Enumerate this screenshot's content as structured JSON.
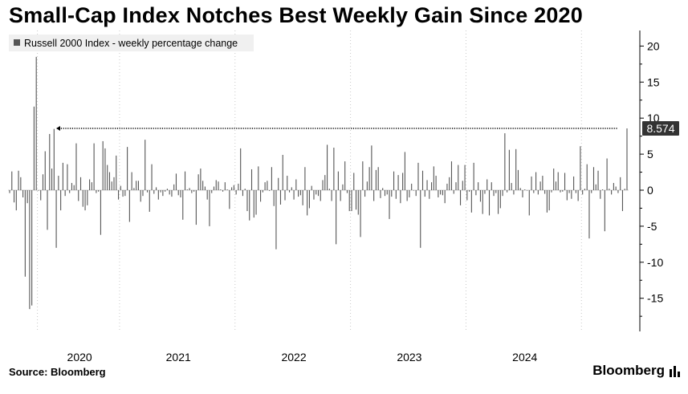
{
  "header": {
    "title": "Small-Cap Index Notches Best Weekly Gain Since 2020"
  },
  "footer": {
    "source": "Source: Bloomberg",
    "brand": "Bloomberg"
  },
  "chart_data": {
    "type": "bar",
    "title": "Small-Cap Index Notches Best Weekly Gain Since 2020",
    "legend": "Russell 2000 Index - weekly percentage change",
    "legend_position": "top-left",
    "x_tick_labels": [
      "2020",
      "2021",
      "2022",
      "2023",
      "2024"
    ],
    "y_ticks": [
      20,
      15,
      10,
      5,
      0,
      -5,
      -10,
      -15
    ],
    "ylim": [
      -19.5,
      22
    ],
    "y_axis_side": "right",
    "grid": "vertical dotted at year boundaries",
    "annotation": {
      "label": "8.574",
      "value": 8.574,
      "reference_line": "dotted horizontal from early-2020 peak to latest week"
    },
    "series": [
      {
        "name": "Russell 2000 Index - weekly percentage change",
        "color": "#555555",
        "values": [
          -0.4,
          2.6,
          -1.7,
          -2.8,
          2.7,
          1.8,
          -1.0,
          -12.0,
          -1.8,
          -16.5,
          -16.0,
          11.6,
          18.5,
          0.0,
          -1.4,
          2.2,
          5.4,
          -5.5,
          7.8,
          3.0,
          8.5,
          -8.0,
          2.0,
          -2.8,
          3.8,
          -0.8,
          3.6,
          -0.4,
          1.0,
          0.7,
          6.5,
          -1.5,
          1.8,
          -2.3,
          -2.8,
          -2.1,
          1.5,
          1.1,
          6.5,
          -0.4,
          -0.2,
          -6.2,
          6.8,
          5.8,
          3.5,
          2.5,
          1.2,
          1.8,
          4.8,
          -1.3,
          0.6,
          -0.9,
          -0.8,
          6.0,
          -4.4,
          2.5,
          0.3,
          1.3,
          1.3,
          -1.6,
          -0.8,
          7.0,
          -0.3,
          -3.0,
          3.6,
          -0.5,
          0.4,
          -1.3,
          -0.3,
          -0.8,
          -0.2,
          0.2,
          -0.6,
          -0.9,
          0.8,
          2.3,
          -0.7,
          -1.0,
          -4.1,
          2.6,
          0.1,
          0.3,
          -0.4,
          -0.2,
          -4.8,
          2.2,
          3.0,
          1.3,
          0.5,
          -1.3,
          -5.0,
          -0.4,
          0.5,
          1.4,
          1.2,
          0.1,
          -0.2,
          1.1,
          0.1,
          -2.6,
          0.4,
          0.7,
          -0.6,
          0.9,
          5.8,
          -0.8,
          0.2,
          -2.9,
          -4.2,
          2.9,
          -3.8,
          -3.4,
          3.3,
          -1.6,
          -0.3,
          1.1,
          1.3,
          -0.1,
          3.2,
          -2.2,
          -8.2,
          1.7,
          -2.0,
          4.9,
          -1.4,
          2.0,
          -0.3,
          0.4,
          -1.3,
          1.5,
          -0.9,
          -0.7,
          -2.1,
          3.2,
          -3.5,
          -2.5,
          0.6,
          -1.3,
          -0.6,
          -0.8,
          -1.5,
          1.4,
          2.1,
          6.3,
          0.2,
          -1.5,
          5.9,
          -7.5,
          2.6,
          -1.5,
          0.8,
          4.0,
          -0.4,
          -2.9,
          -2.9,
          2.4,
          -2.7,
          -3.4,
          -6.5,
          4.0,
          -0.9,
          1.2,
          3.2,
          6.2,
          -1.5,
          2.8,
          3.2,
          -1.1,
          0.3,
          -0.8,
          -0.6,
          -4.0,
          -0.9,
          2.6,
          -1.2,
          2.1,
          -1.8,
          2.4,
          5.3,
          -1.5,
          -1.0,
          0.9,
          0.0,
          -0.8,
          3.8,
          -8.0,
          2.7,
          -0.9,
          1.4,
          -1.2,
          1.1,
          3.3,
          2.0,
          -1.0,
          -0.6,
          -0.7,
          -1.8,
          0.9,
          1.8,
          4.0,
          -0.5,
          1.1,
          3.5,
          -2.1,
          1.3,
          3.5,
          -1.4,
          -0.2,
          -3.1,
          3.8,
          -0.7,
          1.1,
          -1.6,
          -3.3,
          -0.5,
          1.5,
          -3.5,
          1.1,
          -0.8,
          -0.4,
          -3.3,
          -2.5,
          -0.8,
          7.9,
          -0.3,
          5.6,
          1.0,
          -0.6,
          5.7,
          2.8,
          0.3,
          -1.0,
          0.1,
          0.0,
          -3.5,
          1.9,
          -0.4,
          2.5,
          -0.6,
          1.2,
          2.0,
          -0.5,
          -3.1,
          -2.8,
          -0.3,
          3.0,
          1.2,
          2.5,
          -0.3,
          -0.2,
          2.4,
          -1.4,
          -0.4,
          -1.2,
          1.9,
          -0.4,
          -1.5,
          6.1,
          -0.6,
          0.2,
          3.6,
          -6.7,
          -0.4,
          3.2,
          0.8,
          2.7,
          -1.2,
          0.1,
          -5.7,
          4.4,
          0.2,
          -0.6,
          1.0,
          0.5,
          -0.4,
          1.8,
          -2.9,
          0.2,
          8.574
        ]
      }
    ]
  }
}
